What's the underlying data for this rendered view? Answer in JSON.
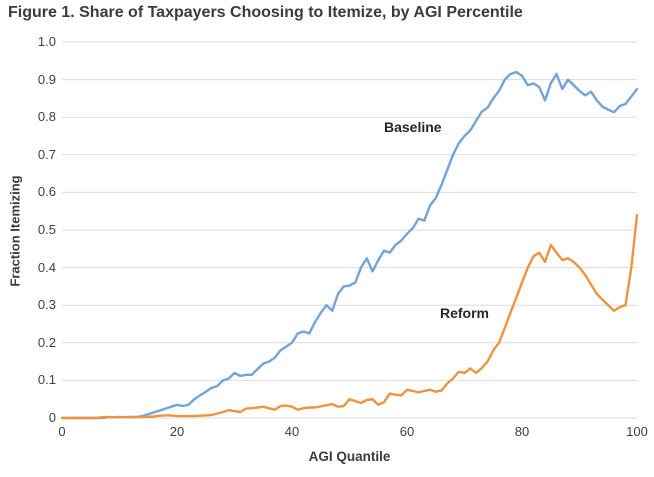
{
  "chart_data": {
    "type": "line",
    "title": "Figure 1. Share of Taxpayers Choosing to Itemize, by AGI Percentile",
    "xlabel": "AGI Quantile",
    "ylabel": "Fraction Itemizing",
    "xlim": [
      0,
      100
    ],
    "ylim": [
      0,
      1.0
    ],
    "grid": "horizontal",
    "grid_color": "#dbdbdb",
    "legend": "inline-labels-on-plot",
    "xticks": [
      {
        "label": "0",
        "value": 0
      },
      {
        "label": "20",
        "value": 20
      },
      {
        "label": "40",
        "value": 40
      },
      {
        "label": "60",
        "value": 60
      },
      {
        "label": "80",
        "value": 80
      },
      {
        "label": "100",
        "value": 100
      }
    ],
    "yticks": [
      {
        "label": "1.0",
        "value": 1.0
      },
      {
        "label": "0.9",
        "value": 0.9
      },
      {
        "label": "0.8",
        "value": 0.8
      },
      {
        "label": "0.7",
        "value": 0.7
      },
      {
        "label": "0.6",
        "value": 0.6
      },
      {
        "label": "0.5",
        "value": 0.5
      },
      {
        "label": "0.4",
        "value": 0.4
      },
      {
        "label": "0.3",
        "value": 0.3
      },
      {
        "label": "0.2",
        "value": 0.2
      },
      {
        "label": "0.1",
        "value": 0.1
      },
      {
        "label": "0",
        "value": 0
      }
    ],
    "series": [
      {
        "name": "Baseline",
        "color": "#72a3da",
        "x_start": 0,
        "x_step": 1,
        "values": [
          0,
          0,
          0,
          0,
          0,
          0,
          0,
          0,
          0.002,
          0.002,
          0.003,
          0.002,
          0.003,
          0.003,
          0.005,
          0.01,
          0.015,
          0.02,
          0.025,
          0.03,
          0.035,
          0.032,
          0.035,
          0.05,
          0.06,
          0.07,
          0.08,
          0.085,
          0.1,
          0.105,
          0.12,
          0.112,
          0.115,
          0.115,
          0.13,
          0.145,
          0.15,
          0.16,
          0.18,
          0.19,
          0.2,
          0.225,
          0.23,
          0.225,
          0.255,
          0.28,
          0.3,
          0.285,
          0.33,
          0.35,
          0.352,
          0.36,
          0.4,
          0.425,
          0.39,
          0.42,
          0.445,
          0.44,
          0.46,
          0.472,
          0.49,
          0.505,
          0.53,
          0.525,
          0.565,
          0.585,
          0.62,
          0.66,
          0.7,
          0.73,
          0.75,
          0.765,
          0.79,
          0.815,
          0.825,
          0.85,
          0.87,
          0.9,
          0.915,
          0.92,
          0.91,
          0.885,
          0.89,
          0.88,
          0.845,
          0.89,
          0.915,
          0.875,
          0.9,
          0.885,
          0.87,
          0.858,
          0.868,
          0.845,
          0.828,
          0.82,
          0.813,
          0.83,
          0.835,
          0.855,
          0.875
        ]
      },
      {
        "name": "Reform",
        "color": "#ef943e",
        "x_start": 0,
        "x_step": 1,
        "values": [
          0,
          0,
          0,
          0,
          0,
          0,
          0,
          0.002,
          0.003,
          0.002,
          0.002,
          0.002,
          0.002,
          0.002,
          0.003,
          0.003,
          0.004,
          0.006,
          0.007,
          0.007,
          0.005,
          0.005,
          0.005,
          0.005,
          0.006,
          0.007,
          0.008,
          0.012,
          0.016,
          0.021,
          0.018,
          0.016,
          0.025,
          0.026,
          0.028,
          0.03,
          0.026,
          0.022,
          0.032,
          0.033,
          0.03,
          0.022,
          0.026,
          0.028,
          0.028,
          0.031,
          0.034,
          0.037,
          0.03,
          0.032,
          0.05,
          0.045,
          0.04,
          0.048,
          0.05,
          0.035,
          0.042,
          0.065,
          0.062,
          0.06,
          0.075,
          0.072,
          0.068,
          0.072,
          0.075,
          0.07,
          0.073,
          0.092,
          0.105,
          0.123,
          0.12,
          0.132,
          0.12,
          0.133,
          0.15,
          0.18,
          0.2,
          0.24,
          0.28,
          0.32,
          0.36,
          0.4,
          0.43,
          0.44,
          0.415,
          0.46,
          0.44,
          0.42,
          0.425,
          0.415,
          0.4,
          0.38,
          0.355,
          0.33,
          0.315,
          0.3,
          0.285,
          0.295,
          0.3,
          0.4,
          0.54
        ]
      }
    ]
  }
}
